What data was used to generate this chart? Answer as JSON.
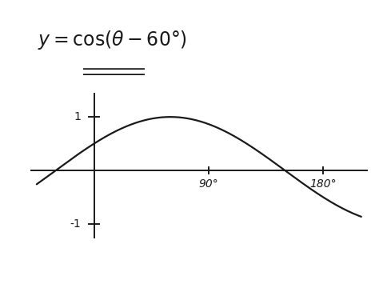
{
  "bg_color": "#ffffff",
  "curve_color": "#1a1a1a",
  "axis_color": "#1a1a1a",
  "theta_start_deg": -45,
  "theta_end_deg": 210,
  "phase_shift_deg": 60,
  "x_ticks": [
    90,
    180
  ],
  "y_ticks_pos": [
    1,
    -1
  ],
  "y_tick_labels": [
    "1",
    "-1"
  ],
  "xlim": [
    -50,
    215
  ],
  "ylim": [
    -1.7,
    1.7
  ],
  "equation_text": "y= cos(θ-60°)",
  "underline1_x": [
    80,
    185
  ],
  "underline2_x": [
    80,
    185
  ],
  "fontsize_ticks": 10
}
